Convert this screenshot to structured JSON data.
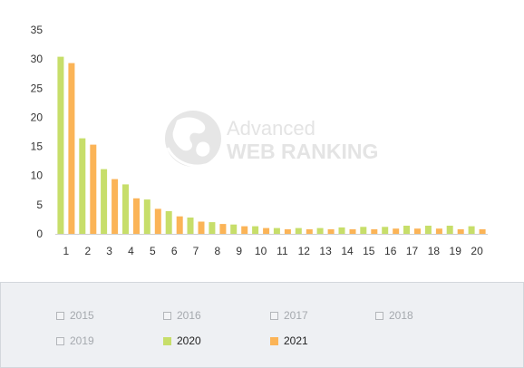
{
  "chart_data": {
    "type": "bar",
    "title": "",
    "xlabel": "",
    "ylabel": "",
    "categories": [
      "1",
      "2",
      "3",
      "4",
      "5",
      "6",
      "7",
      "8",
      "9",
      "10",
      "11",
      "12",
      "13",
      "14",
      "15",
      "16",
      "17",
      "18",
      "19",
      "20"
    ],
    "series": [
      {
        "name": "2020",
        "color": "#c7de6a",
        "values": [
          30.4,
          16.4,
          11.1,
          8.5,
          5.9,
          3.9,
          2.8,
          2.0,
          1.6,
          1.3,
          1.0,
          1.0,
          1.0,
          1.1,
          1.2,
          1.2,
          1.4,
          1.4,
          1.4,
          1.3
        ]
      },
      {
        "name": "2021",
        "color": "#fbb457",
        "values": [
          29.3,
          15.3,
          9.4,
          6.1,
          4.3,
          3.0,
          2.1,
          1.7,
          1.3,
          1.0,
          0.8,
          0.8,
          0.8,
          0.8,
          0.8,
          0.9,
          0.9,
          0.9,
          0.8,
          0.8
        ]
      }
    ],
    "ylim": [
      0,
      35
    ],
    "yticks": [
      0,
      5,
      10,
      15,
      20,
      25,
      30,
      35
    ],
    "grid": false,
    "legend_placement": "bottom"
  },
  "watermark": {
    "line1": "Advanced",
    "line2": "WEB RANKING",
    "icon": "globe-icon"
  },
  "legend": {
    "items": [
      {
        "label": "2015",
        "active": false
      },
      {
        "label": "2016",
        "active": false
      },
      {
        "label": "2017",
        "active": false
      },
      {
        "label": "2018",
        "active": false
      },
      {
        "label": "2019",
        "active": false
      },
      {
        "label": "2020",
        "active": true,
        "color": "#c7de6a"
      },
      {
        "label": "2021",
        "active": true,
        "color": "#fbb457"
      }
    ]
  }
}
